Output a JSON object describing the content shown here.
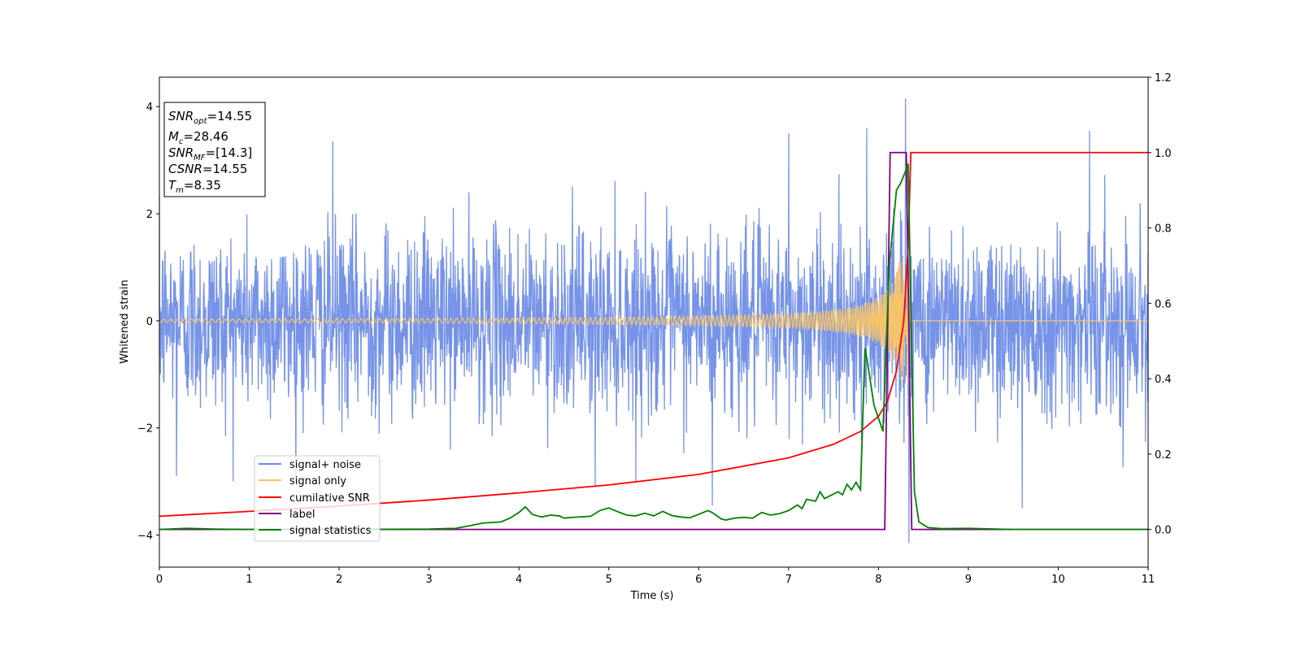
{
  "chart_data": {
    "type": "line",
    "xlabel": "Time (s)",
    "ylabel": "Whitened strain",
    "xlim": [
      0,
      11
    ],
    "ylim_left": [
      -4.6,
      4.55
    ],
    "ylim_right": [
      -0.1,
      1.2
    ],
    "x_ticks": [
      "0",
      "1",
      "2",
      "3",
      "4",
      "5",
      "6",
      "7",
      "8",
      "9",
      "10",
      "11"
    ],
    "y_ticks_left": [
      "−4",
      "−2",
      "0",
      "2",
      "4"
    ],
    "y_ticks_right": [
      "0.0",
      "0.2",
      "0.4",
      "0.6",
      "0.8",
      "1.0",
      "1.2"
    ],
    "legend_position": "lower-left",
    "series": [
      {
        "name": "signal+ noise",
        "axis": "left",
        "color": "#6a8ae6",
        "noise_std": 0.85,
        "extremes": [
          [
            0.19,
            -2.9
          ],
          [
            1.93,
            3.35
          ],
          [
            4.85,
            -3.1
          ],
          [
            6.15,
            -3.45
          ],
          [
            7.0,
            3.5
          ],
          [
            7.87,
            3.6
          ],
          [
            8.3,
            4.15
          ],
          [
            8.34,
            -4.15
          ],
          [
            9.6,
            -3.5
          ],
          [
            10.35,
            3.55
          ]
        ]
      },
      {
        "name": "signal only",
        "axis": "left",
        "color": "#f5c36b",
        "t_merger": 8.35,
        "amp_start": 0.03,
        "amp_peak": 1.2
      },
      {
        "name": "cumilative SNR",
        "axis": "right",
        "color": "#ff0000",
        "x": [
          0,
          1,
          2,
          3,
          4,
          5,
          6,
          7,
          7.5,
          7.8,
          8.0,
          8.1,
          8.2,
          8.28,
          8.33,
          8.36,
          11
        ],
        "y": [
          0.035,
          0.048,
          0.062,
          0.078,
          0.097,
          0.118,
          0.146,
          0.19,
          0.226,
          0.26,
          0.3,
          0.34,
          0.42,
          0.55,
          0.75,
          1.0,
          1.0
        ]
      },
      {
        "name": "label",
        "axis": "right",
        "color": "#800080",
        "x": [
          0,
          8.07,
          8.13,
          8.31,
          8.37,
          11
        ],
        "y": [
          0,
          0,
          1,
          1,
          0,
          0
        ]
      },
      {
        "name": "signal statistics",
        "axis": "right",
        "color": "#008000",
        "x": [
          0,
          0.3,
          0.6,
          1,
          2,
          3,
          3.3,
          3.5,
          3.6,
          3.8,
          3.9,
          4.0,
          4.07,
          4.15,
          4.25,
          4.35,
          4.45,
          4.5,
          4.6,
          4.8,
          4.9,
          5.0,
          5.1,
          5.2,
          5.3,
          5.4,
          5.5,
          5.6,
          5.7,
          5.8,
          5.9,
          6.0,
          6.1,
          6.15,
          6.25,
          6.3,
          6.4,
          6.5,
          6.6,
          6.7,
          6.8,
          6.9,
          7.0,
          7.1,
          7.15,
          7.2,
          7.3,
          7.35,
          7.4,
          7.45,
          7.55,
          7.6,
          7.65,
          7.7,
          7.75,
          7.8,
          7.85,
          7.88,
          7.95,
          8.05,
          8.12,
          8.2,
          8.25,
          8.3,
          8.33,
          8.4,
          8.45,
          8.55,
          8.7,
          9.0,
          9.3,
          9.5,
          10,
          11
        ],
        "y": [
          0,
          0.003,
          0.001,
          0,
          0,
          0.001,
          0.003,
          0.012,
          0.017,
          0.02,
          0.03,
          0.045,
          0.06,
          0.04,
          0.033,
          0.038,
          0.036,
          0.03,
          0.032,
          0.035,
          0.05,
          0.057,
          0.047,
          0.038,
          0.036,
          0.043,
          0.036,
          0.048,
          0.037,
          0.033,
          0.031,
          0.04,
          0.05,
          0.045,
          0.028,
          0.025,
          0.03,
          0.032,
          0.03,
          0.045,
          0.038,
          0.042,
          0.05,
          0.065,
          0.055,
          0.08,
          0.075,
          0.1,
          0.082,
          0.088,
          0.1,
          0.092,
          0.12,
          0.105,
          0.125,
          0.105,
          0.48,
          0.44,
          0.33,
          0.26,
          0.7,
          0.9,
          0.92,
          0.95,
          0.97,
          0.1,
          0.02,
          0.005,
          0.002,
          0.003,
          0.001,
          0.0,
          0.0,
          0.0
        ]
      }
    ]
  },
  "annotation": {
    "snr_opt": {
      "base": "SNR",
      "sub": "opt",
      "rest": "=14.55"
    },
    "mc": {
      "base": "M",
      "sub": "c",
      "rest": "=28.46"
    },
    "snr_mf": {
      "base": "SNR",
      "sub": "MF",
      "rest": "=[14.3]"
    },
    "csnr": {
      "base": "CSNR",
      "rest": "=14.55"
    },
    "tm": {
      "base": "T",
      "sub": "m",
      "rest": "=8.35"
    }
  }
}
